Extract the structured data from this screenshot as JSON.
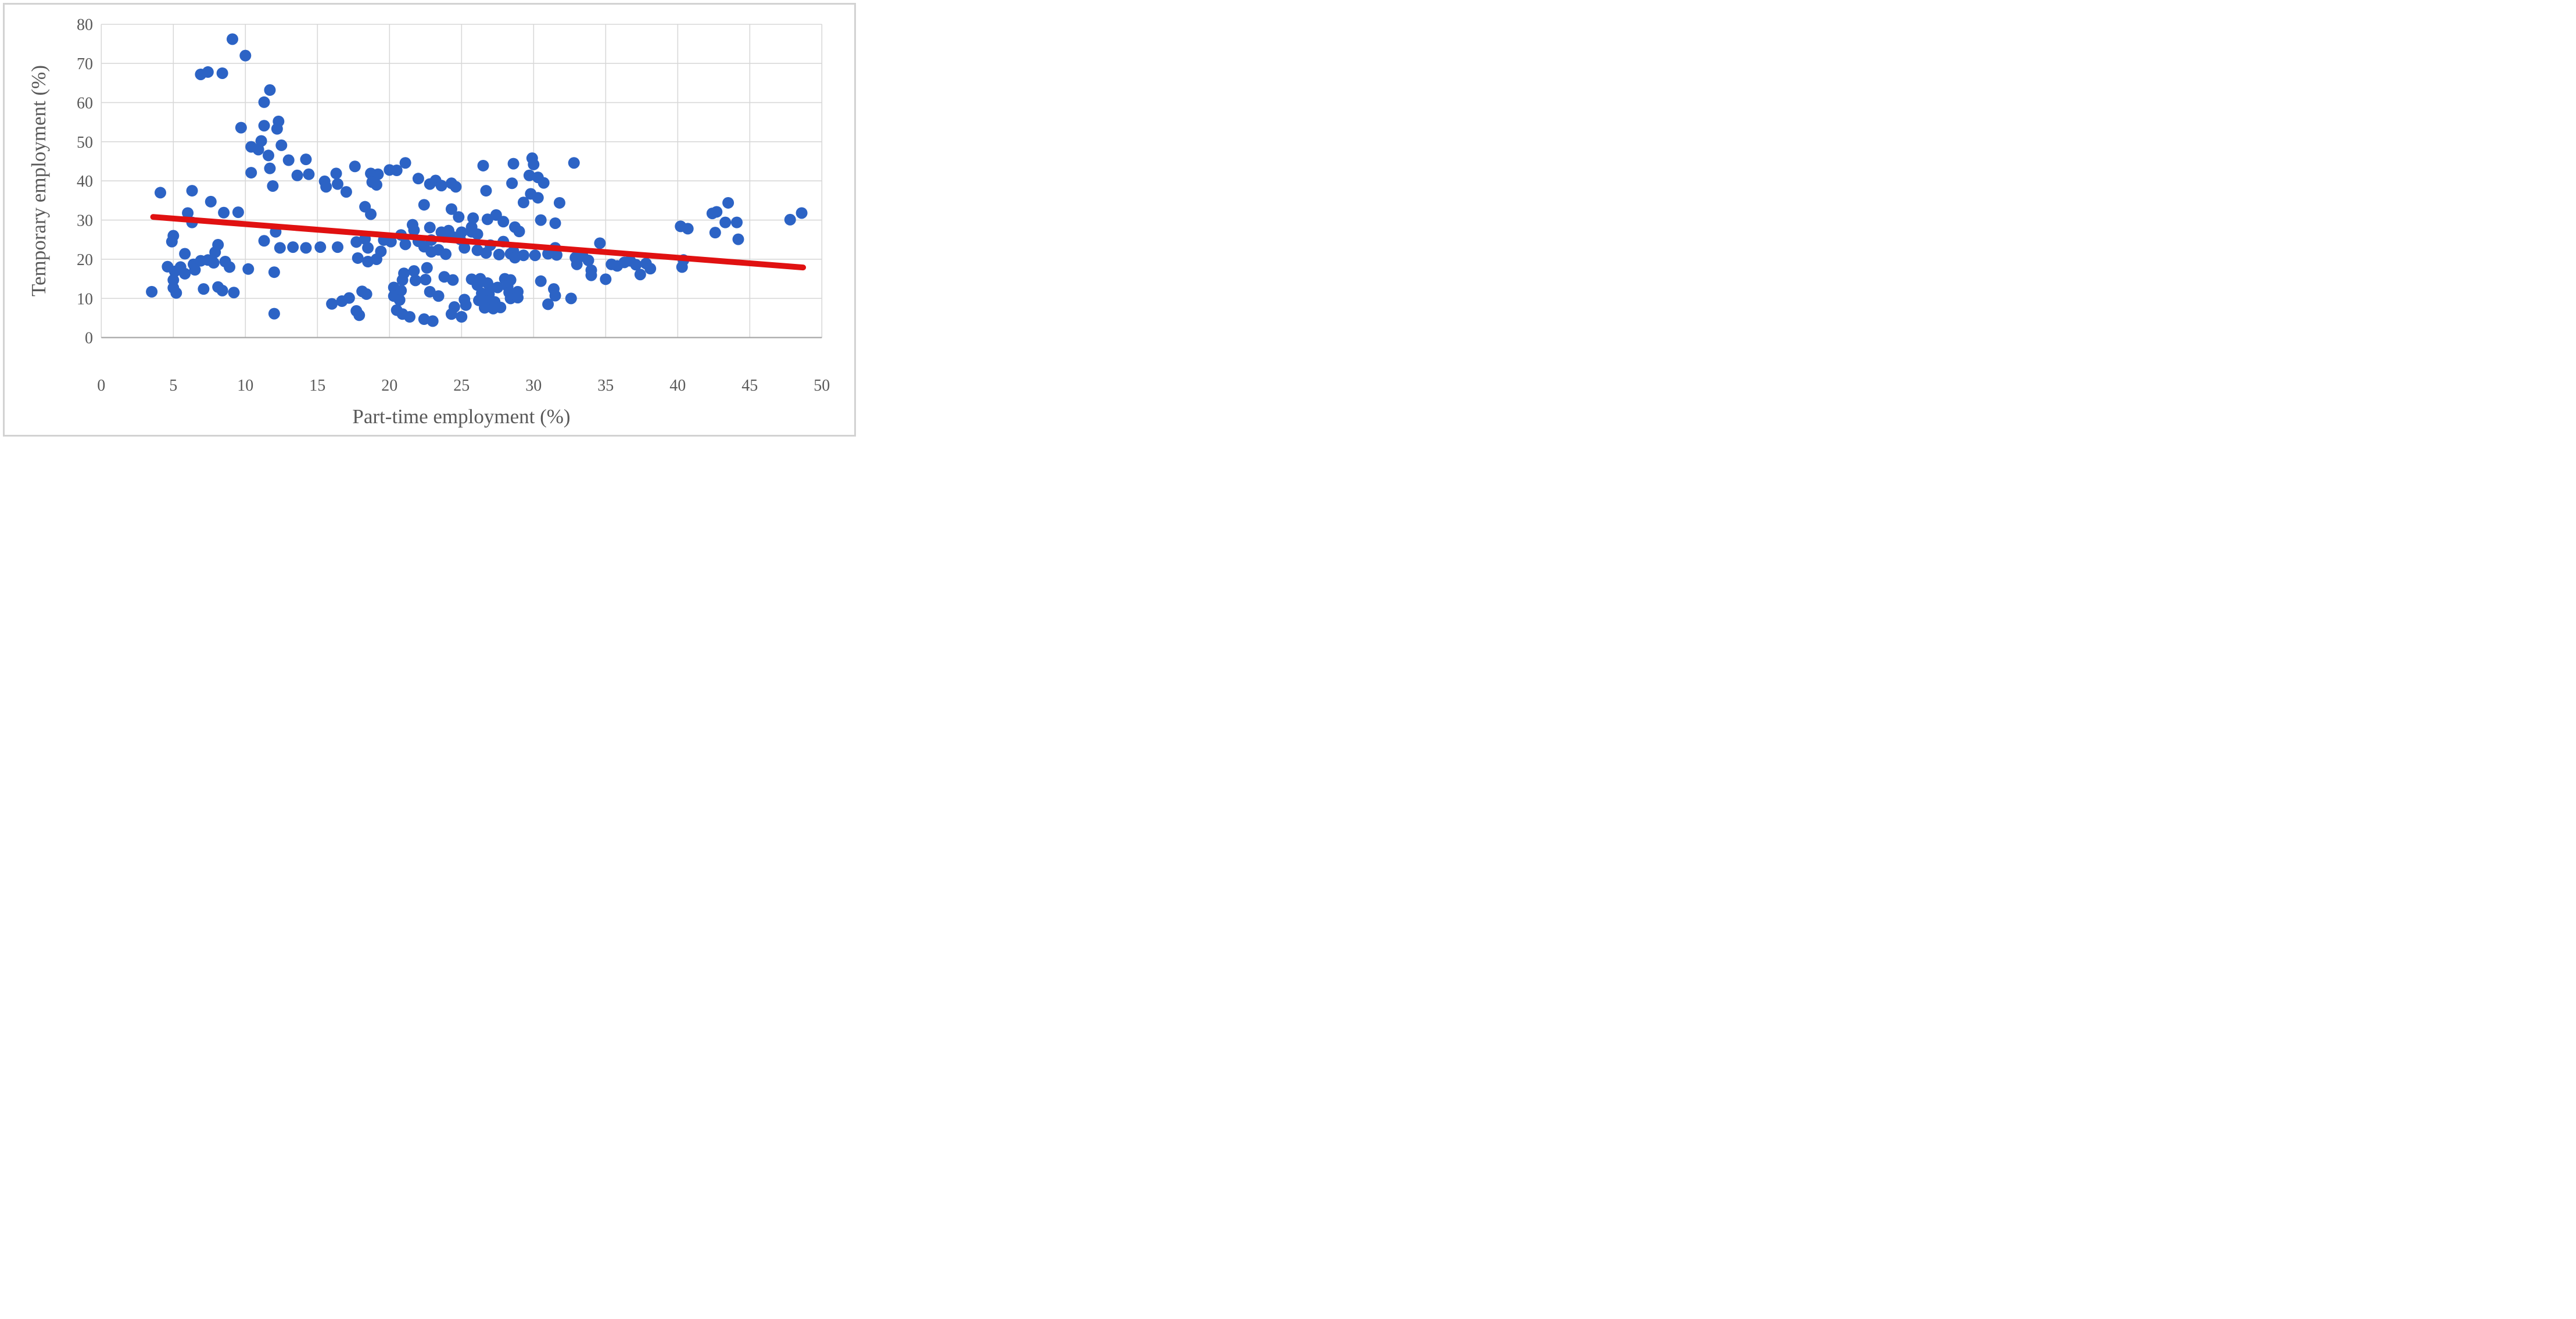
{
  "chart_data": {
    "type": "scatter",
    "title": "",
    "xlabel": "Part-time employment (%)",
    "ylabel": "Temporary employment (%)",
    "xlim": [
      0,
      50
    ],
    "ylim": [
      0,
      80
    ],
    "x_ticks": [
      0,
      5,
      10,
      15,
      20,
      25,
      30,
      35,
      40,
      45,
      50
    ],
    "y_ticks": [
      0,
      10,
      20,
      30,
      40,
      50,
      60,
      70,
      80
    ],
    "grid": true,
    "legend_position": "none",
    "series": [
      {
        "name": "scatter-points",
        "type": "scatter",
        "color": "#2c63c5",
        "points": [
          [
            9.1,
            76.2
          ],
          [
            10.0,
            72.0
          ],
          [
            6.9,
            67.2
          ],
          [
            7.4,
            67.8
          ],
          [
            8.4,
            67.5
          ],
          [
            11.7,
            63.2
          ],
          [
            11.3,
            60.1
          ],
          [
            12.3,
            55.2
          ],
          [
            11.3,
            54.1
          ],
          [
            12.2,
            53.3
          ],
          [
            9.7,
            53.6
          ],
          [
            11.1,
            50.2
          ],
          [
            12.5,
            49.1
          ],
          [
            10.4,
            48.7
          ],
          [
            10.9,
            48.0
          ],
          [
            11.6,
            46.5
          ],
          [
            11.7,
            43.2
          ],
          [
            10.4,
            42.1
          ],
          [
            11.9,
            38.7
          ],
          [
            4.1,
            37.0
          ],
          [
            6.3,
            37.5
          ],
          [
            7.6,
            34.7
          ],
          [
            8.5,
            31.9
          ],
          [
            9.5,
            32.0
          ],
          [
            6.0,
            31.8
          ],
          [
            6.3,
            29.4
          ],
          [
            5.0,
            26.0
          ],
          [
            4.9,
            24.5
          ],
          [
            5.8,
            21.4
          ],
          [
            8.1,
            23.7
          ],
          [
            7.9,
            21.8
          ],
          [
            11.3,
            24.7
          ],
          [
            12.1,
            27.0
          ],
          [
            12.4,
            22.9
          ],
          [
            4.6,
            18.1
          ],
          [
            5.1,
            16.9
          ],
          [
            5.5,
            18.0
          ],
          [
            5.8,
            16.3
          ],
          [
            6.4,
            18.7
          ],
          [
            6.5,
            17.3
          ],
          [
            6.9,
            19.6
          ],
          [
            7.4,
            19.8
          ],
          [
            7.8,
            19.1
          ],
          [
            8.6,
            19.4
          ],
          [
            8.9,
            18.0
          ],
          [
            10.2,
            17.5
          ],
          [
            12.0,
            16.7
          ],
          [
            5.0,
            14.7
          ],
          [
            5.0,
            12.7
          ],
          [
            5.2,
            11.4
          ],
          [
            3.5,
            11.7
          ],
          [
            7.1,
            12.4
          ],
          [
            8.1,
            12.9
          ],
          [
            8.4,
            12.0
          ],
          [
            9.2,
            11.5
          ],
          [
            12.0,
            6.1
          ],
          [
            13.0,
            45.3
          ],
          [
            14.2,
            45.5
          ],
          [
            13.6,
            41.4
          ],
          [
            14.4,
            41.7
          ],
          [
            15.5,
            39.9
          ],
          [
            15.6,
            38.5
          ],
          [
            16.3,
            41.9
          ],
          [
            16.4,
            39.2
          ],
          [
            17.0,
            37.2
          ],
          [
            17.6,
            43.7
          ],
          [
            18.7,
            41.9
          ],
          [
            19.2,
            41.7
          ],
          [
            18.8,
            39.7
          ],
          [
            19.1,
            39.0
          ],
          [
            20.0,
            42.8
          ],
          [
            20.5,
            42.7
          ],
          [
            21.1,
            44.6
          ],
          [
            22.0,
            40.6
          ],
          [
            22.8,
            39.2
          ],
          [
            23.2,
            40.1
          ],
          [
            23.6,
            38.8
          ],
          [
            24.3,
            39.4
          ],
          [
            24.6,
            38.5
          ],
          [
            22.4,
            33.9
          ],
          [
            18.3,
            33.4
          ],
          [
            18.7,
            31.5
          ],
          [
            24.3,
            32.8
          ],
          [
            24.8,
            30.8
          ],
          [
            13.3,
            23.1
          ],
          [
            14.2,
            22.9
          ],
          [
            15.2,
            23.1
          ],
          [
            16.4,
            23.1
          ],
          [
            17.7,
            24.4
          ],
          [
            18.3,
            25.2
          ],
          [
            18.5,
            22.9
          ],
          [
            19.6,
            24.9
          ],
          [
            20.1,
            24.5
          ],
          [
            20.8,
            26.2
          ],
          [
            21.6,
            28.8
          ],
          [
            21.7,
            27.4
          ],
          [
            22.8,
            28.1
          ],
          [
            23.6,
            26.9
          ],
          [
            24.1,
            27.3
          ],
          [
            22.0,
            24.6
          ],
          [
            21.1,
            23.8
          ],
          [
            22.9,
            24.9
          ],
          [
            23.8,
            25.7
          ],
          [
            24.4,
            25.7
          ],
          [
            24.9,
            25.1
          ],
          [
            22.4,
            23.2
          ],
          [
            22.9,
            21.9
          ],
          [
            23.4,
            22.4
          ],
          [
            23.9,
            21.3
          ],
          [
            19.4,
            22.0
          ],
          [
            17.8,
            20.3
          ],
          [
            18.5,
            19.4
          ],
          [
            19.1,
            20.0
          ],
          [
            21.0,
            16.4
          ],
          [
            21.7,
            17.0
          ],
          [
            22.6,
            17.8
          ],
          [
            20.9,
            14.7
          ],
          [
            21.8,
            14.6
          ],
          [
            22.5,
            14.8
          ],
          [
            23.8,
            15.5
          ],
          [
            24.4,
            14.7
          ],
          [
            16.0,
            8.6
          ],
          [
            16.7,
            9.3
          ],
          [
            17.2,
            10.1
          ],
          [
            18.1,
            11.8
          ],
          [
            18.4,
            11.1
          ],
          [
            17.7,
            6.8
          ],
          [
            17.9,
            5.7
          ],
          [
            20.3,
            12.8
          ],
          [
            20.8,
            12.0
          ],
          [
            20.3,
            10.6
          ],
          [
            20.7,
            9.6
          ],
          [
            20.5,
            7.0
          ],
          [
            20.9,
            6.0
          ],
          [
            21.4,
            5.3
          ],
          [
            22.4,
            4.7
          ],
          [
            23.0,
            4.2
          ],
          [
            22.8,
            11.7
          ],
          [
            23.4,
            10.6
          ],
          [
            24.5,
            7.8
          ],
          [
            24.3,
            6.0
          ],
          [
            26.5,
            43.9
          ],
          [
            28.6,
            44.4
          ],
          [
            29.9,
            45.8
          ],
          [
            30.0,
            44.2
          ],
          [
            32.8,
            44.6
          ],
          [
            29.7,
            41.4
          ],
          [
            30.3,
            40.9
          ],
          [
            30.7,
            39.5
          ],
          [
            28.5,
            39.4
          ],
          [
            26.7,
            37.5
          ],
          [
            29.8,
            36.7
          ],
          [
            30.3,
            35.7
          ],
          [
            29.3,
            34.5
          ],
          [
            31.8,
            34.4
          ],
          [
            25.8,
            30.5
          ],
          [
            26.8,
            30.2
          ],
          [
            27.4,
            31.3
          ],
          [
            27.9,
            29.6
          ],
          [
            25.7,
            28.2
          ],
          [
            30.5,
            30.0
          ],
          [
            31.5,
            29.2
          ],
          [
            25.0,
            26.9
          ],
          [
            25.7,
            27.0
          ],
          [
            26.1,
            26.4
          ],
          [
            28.7,
            28.2
          ],
          [
            29.0,
            27.1
          ],
          [
            31.5,
            22.9
          ],
          [
            34.6,
            24.1
          ],
          [
            25.2,
            22.9
          ],
          [
            26.1,
            22.3
          ],
          [
            26.7,
            21.6
          ],
          [
            27.6,
            21.2
          ],
          [
            28.4,
            21.4
          ],
          [
            27.0,
            23.6
          ],
          [
            27.9,
            24.5
          ],
          [
            28.6,
            22.0
          ],
          [
            28.7,
            20.4
          ],
          [
            29.3,
            21.0
          ],
          [
            30.1,
            21.0
          ],
          [
            31.0,
            21.4
          ],
          [
            31.6,
            21.1
          ],
          [
            32.9,
            20.4
          ],
          [
            33.4,
            20.8
          ],
          [
            33.8,
            19.7
          ],
          [
            33.0,
            18.7
          ],
          [
            34.0,
            17.2
          ],
          [
            34.0,
            15.9
          ],
          [
            35.0,
            14.9
          ],
          [
            35.4,
            18.7
          ],
          [
            35.8,
            18.3
          ],
          [
            36.3,
            19.2
          ],
          [
            36.7,
            19.6
          ],
          [
            37.1,
            18.6
          ],
          [
            25.7,
            14.9
          ],
          [
            26.3,
            15.0
          ],
          [
            26.1,
            13.4
          ],
          [
            26.8,
            13.9
          ],
          [
            27.0,
            12.7
          ],
          [
            27.5,
            12.8
          ],
          [
            26.4,
            11.3
          ],
          [
            26.9,
            11.1
          ],
          [
            26.2,
            9.5
          ],
          [
            26.8,
            9.3
          ],
          [
            27.3,
            9.1
          ],
          [
            26.6,
            7.6
          ],
          [
            27.2,
            7.4
          ],
          [
            27.7,
            7.7
          ],
          [
            25.2,
            9.7
          ],
          [
            25.3,
            8.3
          ],
          [
            25.0,
            5.3
          ],
          [
            28.0,
            15.0
          ],
          [
            28.4,
            14.7
          ],
          [
            28.2,
            13.1
          ],
          [
            28.3,
            11.5
          ],
          [
            28.4,
            10.0
          ],
          [
            28.9,
            11.7
          ],
          [
            28.9,
            10.2
          ],
          [
            30.5,
            14.4
          ],
          [
            31.4,
            12.4
          ],
          [
            31.5,
            10.7
          ],
          [
            32.6,
            10.0
          ],
          [
            31.0,
            8.5
          ],
          [
            37.8,
            18.9
          ],
          [
            38.1,
            17.6
          ],
          [
            37.4,
            16.1
          ],
          [
            40.4,
            19.8
          ],
          [
            40.3,
            18.0
          ],
          [
            40.2,
            28.4
          ],
          [
            40.7,
            27.8
          ],
          [
            42.4,
            31.7
          ],
          [
            42.7,
            32.1
          ],
          [
            43.5,
            34.4
          ],
          [
            43.3,
            29.4
          ],
          [
            44.1,
            29.4
          ],
          [
            42.6,
            26.8
          ],
          [
            44.2,
            25.1
          ],
          [
            47.8,
            30.1
          ],
          [
            48.6,
            31.8
          ]
        ]
      },
      {
        "name": "trend-line",
        "type": "line",
        "color": "#e01111",
        "from": [
          3.6,
          30.8
        ],
        "to": [
          48.7,
          17.9
        ]
      }
    ]
  },
  "style": {
    "background": "#ffffff",
    "frame_border": "#d2d2d2",
    "gridline_color": "#d8d8d8",
    "axis_line_color": "#ababab",
    "label_color": "#595959",
    "point_color": "#2c63c5",
    "trend_color": "#e01111"
  }
}
